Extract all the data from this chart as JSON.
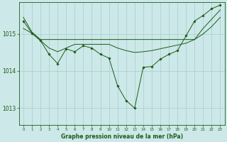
{
  "title": "Graphe pression niveau de la mer (hPa)",
  "background_color": "#cce8e8",
  "grid_color": "#aacccc",
  "line_color": "#1a5c1a",
  "xlim": [
    -0.5,
    23.5
  ],
  "ylim": [
    1012.55,
    1015.85
  ],
  "yticks": [
    1013,
    1014,
    1015
  ],
  "xticks": [
    0,
    1,
    2,
    3,
    4,
    5,
    6,
    7,
    8,
    9,
    10,
    11,
    12,
    13,
    14,
    15,
    16,
    17,
    18,
    19,
    20,
    21,
    22,
    23
  ],
  "line1_x": [
    0,
    1,
    2,
    3,
    4,
    5,
    6,
    7,
    8,
    9,
    10,
    11,
    12,
    13,
    14,
    15,
    16,
    17,
    18,
    19,
    20,
    21,
    22,
    23
  ],
  "line1_y": [
    1015.45,
    1015.05,
    1014.85,
    1014.85,
    1014.85,
    1014.85,
    1014.85,
    1014.85,
    1014.85,
    1014.85,
    1014.85,
    1014.85,
    1014.85,
    1014.85,
    1014.85,
    1014.85,
    1014.85,
    1014.85,
    1014.85,
    1014.85,
    1014.85,
    1015.15,
    1015.4,
    1015.65
  ],
  "line2_x": [
    0,
    1,
    2,
    3,
    4,
    5,
    6,
    7,
    8,
    9,
    10,
    11,
    12,
    13,
    14,
    15,
    16,
    17,
    18,
    19,
    20,
    21,
    22,
    23
  ],
  "line2_y": [
    1015.15,
    1015.02,
    1014.82,
    1014.62,
    1014.52,
    1014.62,
    1014.72,
    1014.72,
    1014.72,
    1014.72,
    1014.72,
    1014.62,
    1014.55,
    1014.5,
    1014.52,
    1014.55,
    1014.6,
    1014.65,
    1014.7,
    1014.75,
    1014.85,
    1015.0,
    1015.2,
    1015.45
  ],
  "line3_x": [
    0,
    1,
    2,
    3,
    4,
    5,
    6,
    7,
    8,
    9,
    10,
    11,
    12,
    13,
    14,
    15,
    16,
    17,
    18,
    19,
    20,
    21,
    22,
    23
  ],
  "line3_y": [
    1015.35,
    1015.02,
    1014.82,
    1014.45,
    1014.2,
    1014.6,
    1014.52,
    1014.68,
    1014.62,
    1014.45,
    1014.35,
    1013.6,
    1013.2,
    1013.0,
    1014.1,
    1014.12,
    1014.32,
    1014.45,
    1014.55,
    1014.95,
    1015.35,
    1015.5,
    1015.68,
    1015.78
  ]
}
